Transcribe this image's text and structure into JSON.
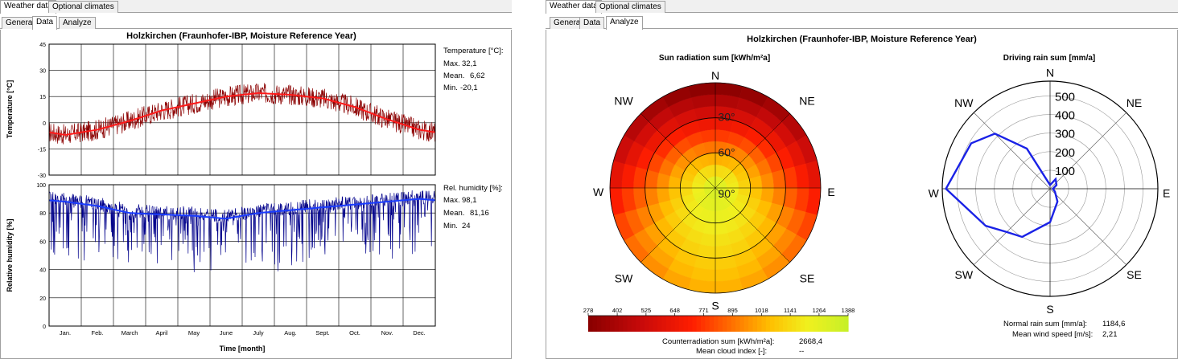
{
  "left": {
    "tabs": [
      "Weather data",
      "Optional climates"
    ],
    "subtabs": [
      "General",
      "Data",
      "Analyze"
    ],
    "title": "Holzkirchen (Fraunhofer-IBP, Moisture Reference Year)",
    "temp": {
      "ylabel": "Temperature [°C]",
      "legend_title": "Temperature [°C]:",
      "max_label": "Max.",
      "max_value": "32,1",
      "mean_label": "Mean.",
      "mean_value": "6,62",
      "min_label": "Min.",
      "min_value": "-20,1"
    },
    "rh": {
      "ylabel": "Relative humidity [%]",
      "legend_title": "Rel. humidity [%]:",
      "max_label": "Max.",
      "max_value": "98,1",
      "mean_label": "Mean.",
      "mean_value": "81,16",
      "min_label": "Min.",
      "min_value": "24"
    },
    "xlabel": "Time [month]",
    "colors": {
      "temp_raw": "#8b0000",
      "temp_mean": "#ff1a1a",
      "rh_raw": "#00008b",
      "rh_mean": "#1a3cff"
    }
  },
  "right": {
    "tabs": [
      "Weather data",
      "Optional climates"
    ],
    "subtabs": [
      "General",
      "Data",
      "Analyze"
    ],
    "title": "Holzkirchen (Fraunhofer-IBP, Moisture Reference Year)",
    "sun_title": "Sun radiation sum [kWh/m²a]",
    "rain_title": "Driving rain sum [mm/a]",
    "counter_label": "Counterradiation sum [kWh/m²a]:",
    "counter_value": "2668,4",
    "cloud_label": "Mean cloud index [-]:",
    "cloud_value": "--",
    "normal_rain_label": "Normal rain sum [mm/a]:",
    "normal_rain_value": "1184,6",
    "wind_label": "Mean wind speed [m/s]:",
    "wind_value": "2,21"
  },
  "chart_data": [
    {
      "type": "line",
      "title": "",
      "xlabel": "Time [month]",
      "ylabel": "Temperature [°C]",
      "ylim": [
        -30,
        45
      ],
      "yticks": [
        -30,
        -15,
        0,
        15,
        30,
        45
      ],
      "categories": [
        "Jan.",
        "Feb.",
        "March",
        "April",
        "May",
        "June",
        "July",
        "Aug.",
        "Sept.",
        "Oct.",
        "Nov.",
        "Dec."
      ],
      "series": [
        {
          "name": "",
          "values": [
            -7,
            -4,
            1,
            7,
            11,
            15,
            17,
            16,
            14,
            9,
            2,
            -4
          ]
        }
      ],
      "grid": true
    },
    {
      "type": "line",
      "title": "",
      "xlabel": "Time [month]",
      "ylabel": "Relative humidity [%]",
      "ylim": [
        0,
        100
      ],
      "yticks": [
        0,
        20,
        40,
        60,
        80,
        100
      ],
      "categories": [
        "Jan.",
        "Feb.",
        "March",
        "April",
        "May",
        "June",
        "July",
        "Aug.",
        "Sept.",
        "Oct.",
        "Nov.",
        "Dec."
      ],
      "series": [
        {
          "name": "",
          "values": [
            88,
            85,
            80,
            79,
            78,
            76,
            80,
            82,
            84,
            86,
            88,
            90
          ]
        }
      ],
      "grid": true
    },
    {
      "type": "heatmap",
      "title": "Sun radiation sum [kWh/m²a]",
      "directions": [
        "N",
        "NE",
        "E",
        "SE",
        "S",
        "SW",
        "W",
        "NW"
      ],
      "elevation_labels": [
        "30°",
        "60°",
        "90°"
      ],
      "colorbar_ticks": [
        278,
        402,
        525,
        648,
        771,
        895,
        1018,
        1141,
        1264,
        1388
      ],
      "colorbar_range": [
        278,
        1388
      ]
    },
    {
      "type": "line",
      "title": "Driving rain sum [mm/a]",
      "directions": [
        "N",
        "NE",
        "E",
        "SE",
        "S",
        "SW",
        "W",
        "NW"
      ],
      "radial_ticks": [
        100,
        200,
        300,
        400,
        500
      ],
      "rmax": 580,
      "series": [
        {
          "name": "",
          "angles_deg": [
            0,
            30,
            60,
            90,
            120,
            150,
            180,
            210,
            225,
            240,
            270,
            300,
            315,
            330
          ],
          "values": [
            20,
            60,
            40,
            15,
            30,
            80,
            180,
            300,
            330,
            400,
            560,
            490,
            420,
            250
          ]
        }
      ]
    }
  ]
}
